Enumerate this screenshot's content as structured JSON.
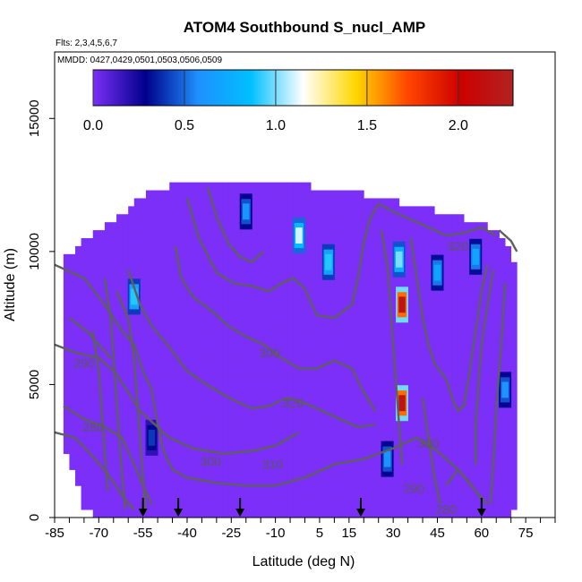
{
  "chart_data": {
    "type": "heatmap",
    "title": "ATOM4 Southbound S_nucl_AMP",
    "flights_label": "Flts: 2,3,4,5,6,7",
    "dates_label": "MMDD: 0427,0429,0501,0503,0506,0509",
    "xlabel": "Latitude (deg N)",
    "ylabel": "Altitude (m)",
    "xlim": [
      -85,
      85
    ],
    "ylim": [
      0,
      17500
    ],
    "x_ticks": [
      -85,
      -70,
      -55,
      -40,
      -25,
      -10,
      5,
      15,
      30,
      45,
      60,
      75
    ],
    "x_tick_labels": [
      "-85",
      "-70",
      "-55",
      "-40",
      "-25",
      "-10",
      "5",
      "15",
      "30",
      "45",
      "60",
      "75"
    ],
    "y_ticks": [
      0,
      5000,
      10000,
      15000
    ],
    "y_tick_labels": [
      "0",
      "5000",
      "10000",
      "15000"
    ],
    "colorbar": {
      "range": [
        0,
        2.3
      ],
      "ticks": [
        0.0,
        0.5,
        1.0,
        1.5,
        2.0
      ],
      "tick_labels": [
        "0.0",
        "0.5",
        "1.0",
        "1.5",
        "2.0"
      ],
      "colors": [
        "#7b2ff7",
        "#00008b",
        "#1e90ff",
        "#00bfff",
        "#ffffff",
        "#ffd700",
        "#ff4500",
        "#cd0000",
        "#b22222"
      ]
    },
    "background_value": 0.0,
    "envelope": [
      {
        "x": -82,
        "top": 9500,
        "bottom": 3000
      },
      {
        "x": -75,
        "top": 10300,
        "bottom": 500
      },
      {
        "x": -70,
        "top": 10600,
        "bottom": 0
      },
      {
        "x": -62,
        "top": 11200,
        "bottom": 0
      },
      {
        "x": -56,
        "top": 11900,
        "bottom": 0
      },
      {
        "x": -42,
        "top": 12500,
        "bottom": 0
      },
      {
        "x": -10,
        "top": 12500,
        "bottom": 0
      },
      {
        "x": 25,
        "top": 11900,
        "bottom": 0
      },
      {
        "x": 40,
        "top": 11500,
        "bottom": 0
      },
      {
        "x": 55,
        "top": 11100,
        "bottom": 0
      },
      {
        "x": 62,
        "top": 10800,
        "bottom": 0
      },
      {
        "x": 68,
        "top": 10300,
        "bottom": 0
      },
      {
        "x": 72,
        "top": 9000,
        "bottom": 400
      }
    ],
    "hotspots": [
      {
        "x": 33,
        "y": 8000,
        "value": 2.2
      },
      {
        "x": 33,
        "y": 4300,
        "value": 2.2
      },
      {
        "x": 32,
        "y": 9700,
        "value": 1.0
      },
      {
        "x": -2,
        "y": 10600,
        "value": 1.1
      },
      {
        "x": -20,
        "y": 11500,
        "value": 0.6
      },
      {
        "x": 8,
        "y": 9600,
        "value": 0.9
      },
      {
        "x": -58,
        "y": 8300,
        "value": 0.9
      },
      {
        "x": 45,
        "y": 9200,
        "value": 0.7
      },
      {
        "x": 58,
        "y": 9800,
        "value": 0.7
      },
      {
        "x": 68,
        "y": 4800,
        "value": 0.6
      },
      {
        "x": 28,
        "y": 2200,
        "value": 0.6
      },
      {
        "x": -52,
        "y": 3000,
        "value": 0.4
      }
    ],
    "contour_labels": [
      {
        "text": "320",
        "x": 52,
        "y": 10200
      },
      {
        "text": "290",
        "x": -75,
        "y": 5800
      },
      {
        "text": "280",
        "x": -72,
        "y": 3400
      },
      {
        "text": "300",
        "x": -12,
        "y": 6200
      },
      {
        "text": "320",
        "x": -4,
        "y": 4300
      },
      {
        "text": "300",
        "x": -32,
        "y": 2100
      },
      {
        "text": "310",
        "x": -11,
        "y": 2000
      },
      {
        "text": "300",
        "x": 42,
        "y": 2800
      },
      {
        "text": "290",
        "x": 37,
        "y": 1100
      },
      {
        "text": "280",
        "x": 48,
        "y": 300
      }
    ],
    "flight_markers": [
      -55,
      -43,
      -22,
      19,
      60
    ],
    "contours": [
      [
        [
          -85,
          9500
        ],
        [
          -75,
          9000
        ],
        [
          -68,
          8000
        ],
        [
          -62,
          7000
        ],
        [
          -58,
          6500
        ],
        [
          -55,
          5500
        ],
        [
          -52,
          4800
        ],
        [
          -50,
          3500
        ],
        [
          -48,
          2500
        ],
        [
          -45,
          1800
        ],
        [
          -40,
          1500
        ],
        [
          -30,
          1300
        ],
        [
          -20,
          1200
        ],
        [
          -10,
          1200
        ],
        [
          0,
          1500
        ],
        [
          10,
          2000
        ],
        [
          20,
          2200
        ],
        [
          30,
          2600
        ],
        [
          38,
          3000
        ],
        [
          45,
          2500
        ],
        [
          52,
          1800
        ],
        [
          58,
          1000
        ],
        [
          62,
          500
        ]
      ],
      [
        [
          -85,
          3200
        ],
        [
          -78,
          3000
        ],
        [
          -72,
          2300
        ],
        [
          -66,
          1500
        ],
        [
          -62,
          800
        ],
        [
          -58,
          300
        ]
      ],
      [
        [
          -82,
          4200
        ],
        [
          -75,
          3700
        ],
        [
          -68,
          3400
        ],
        [
          -62,
          3000
        ],
        [
          -58,
          2000
        ],
        [
          -55,
          1200
        ],
        [
          -52,
          500
        ]
      ],
      [
        [
          -85,
          6500
        ],
        [
          -78,
          6200
        ],
        [
          -70,
          6000
        ],
        [
          -64,
          5400
        ],
        [
          -60,
          4700
        ],
        [
          -56,
          4000
        ],
        [
          -52,
          3600
        ],
        [
          -46,
          3000
        ],
        [
          -38,
          2600
        ],
        [
          -28,
          2400
        ],
        [
          -18,
          2500
        ],
        [
          -10,
          2700
        ],
        [
          -2,
          3200
        ]
      ],
      [
        [
          -80,
          7500
        ],
        [
          -74,
          7000
        ],
        [
          -70,
          6500
        ],
        [
          -66,
          6000
        ]
      ],
      [
        [
          -60,
          9300
        ],
        [
          -56,
          8000
        ],
        [
          -52,
          7200
        ],
        [
          -46,
          6400
        ],
        [
          -40,
          5500
        ],
        [
          -32,
          4900
        ],
        [
          -24,
          4400
        ],
        [
          -18,
          4100
        ],
        [
          -12,
          4200
        ],
        [
          -6,
          4500
        ],
        [
          0,
          4300
        ],
        [
          6,
          4000
        ],
        [
          12,
          3700
        ],
        [
          18,
          3400
        ],
        [
          24,
          3500
        ]
      ],
      [
        [
          -64,
          8500
        ],
        [
          -60,
          7500
        ],
        [
          -58,
          6000
        ],
        [
          -57,
          4500
        ],
        [
          -56,
          3000
        ],
        [
          -55,
          1500
        ],
        [
          -54,
          200
        ]
      ],
      [
        [
          -68,
          9000
        ],
        [
          -66,
          7500
        ],
        [
          -65,
          6000
        ],
        [
          -64,
          4500
        ],
        [
          -63,
          3000
        ],
        [
          -62,
          1500
        ],
        [
          -61,
          300
        ]
      ],
      [
        [
          -72,
          7000
        ],
        [
          -70,
          5500
        ],
        [
          -69,
          4000
        ],
        [
          -68,
          2500
        ],
        [
          -67,
          1000
        ]
      ],
      [
        [
          -44,
          10200
        ],
        [
          -42,
          9000
        ],
        [
          -38,
          8300
        ],
        [
          -32,
          7800
        ],
        [
          -26,
          7200
        ],
        [
          -20,
          6800
        ],
        [
          -14,
          6500
        ],
        [
          -8,
          6000
        ],
        [
          -2,
          5600
        ],
        [
          4,
          5600
        ],
        [
          10,
          5900
        ],
        [
          16,
          5600
        ],
        [
          20,
          4700
        ],
        [
          24,
          4000
        ]
      ],
      [
        [
          -40,
          12000
        ],
        [
          -36,
          10500
        ],
        [
          -30,
          9200
        ],
        [
          -24,
          8800
        ],
        [
          -18,
          8700
        ],
        [
          -12,
          8500
        ],
        [
          -8,
          8800
        ],
        [
          -4,
          9000
        ],
        [
          0,
          8600
        ],
        [
          4,
          7600
        ],
        [
          10,
          7500
        ],
        [
          16,
          8000
        ],
        [
          18,
          9000
        ],
        [
          20,
          10300
        ],
        [
          22,
          11200
        ],
        [
          25,
          11800
        ]
      ],
      [
        [
          -33,
          12400
        ],
        [
          -30,
          11300
        ],
        [
          -26,
          10300
        ],
        [
          -22,
          9800
        ],
        [
          -18,
          9600
        ],
        [
          -14,
          10000
        ]
      ],
      [
        [
          25,
          11800
        ],
        [
          30,
          11500
        ],
        [
          36,
          11200
        ],
        [
          42,
          10900
        ],
        [
          48,
          10600
        ],
        [
          54,
          10700
        ],
        [
          60,
          10900
        ],
        [
          65,
          10600
        ]
      ],
      [
        [
          26,
          10800
        ],
        [
          28,
          9500
        ],
        [
          29,
          8000
        ],
        [
          30,
          6500
        ],
        [
          31,
          5000
        ],
        [
          32,
          3500
        ],
        [
          33,
          2000
        ]
      ],
      [
        [
          36,
          10500
        ],
        [
          38,
          9000
        ],
        [
          40,
          7500
        ],
        [
          42,
          6500
        ],
        [
          44,
          5800
        ],
        [
          46,
          5500
        ],
        [
          48,
          5200
        ],
        [
          50,
          4500
        ],
        [
          52,
          4000
        ],
        [
          54,
          4200
        ],
        [
          56,
          5500
        ],
        [
          58,
          7000
        ],
        [
          60,
          8500
        ],
        [
          62,
          9500
        ]
      ],
      [
        [
          64,
          9300
        ],
        [
          62,
          8000
        ],
        [
          60,
          6500
        ],
        [
          59,
          5000
        ],
        [
          58,
          3500
        ],
        [
          58,
          2000
        ]
      ],
      [
        [
          68,
          8800
        ],
        [
          67,
          7000
        ],
        [
          66,
          5500
        ],
        [
          65,
          4000
        ],
        [
          64,
          2000
        ],
        [
          63,
          500
        ]
      ],
      [
        [
          66,
          10800
        ],
        [
          70,
          10400
        ],
        [
          72,
          10000
        ]
      ],
      [
        [
          40,
          4500
        ],
        [
          42,
          3000
        ],
        [
          44,
          1500
        ],
        [
          46,
          500
        ]
      ],
      [
        [
          48,
          1200
        ],
        [
          52,
          1800
        ],
        [
          56,
          1300
        ],
        [
          60,
          700
        ]
      ]
    ]
  }
}
